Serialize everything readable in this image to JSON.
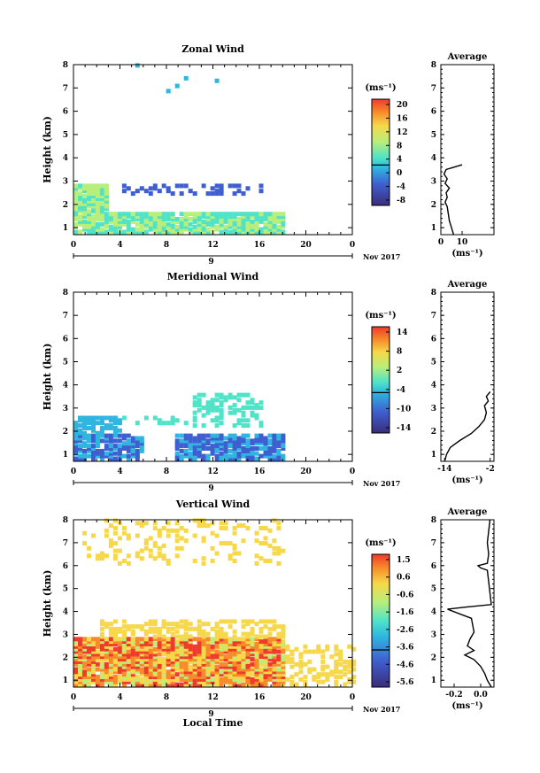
{
  "chart_data": [
    {
      "type": "heatmap",
      "title": "Zonal Wind",
      "ylabel": "Height (km)",
      "y_ticks": [
        "1",
        "2",
        "3",
        "4",
        "5",
        "6",
        "7",
        "8"
      ],
      "x_ticks": [
        "0",
        "4",
        "8",
        "12",
        "16",
        "20",
        "0"
      ],
      "date_day": "9",
      "date_month": "Nov 2017",
      "units": "(ms⁻¹)",
      "colorbar_ticks": [
        "20",
        "16",
        "12",
        "8",
        "4",
        "0",
        "-4",
        "-8"
      ],
      "colorbar_range": [
        -10,
        22
      ],
      "profile": {
        "title": "Average",
        "x_ticks": [
          "0",
          "10"
        ],
        "xlabel": "(ms⁻¹)",
        "xlim": [
          0,
          25
        ],
        "heights": [
          0.7,
          1.0,
          1.3,
          1.6,
          1.9,
          2.1,
          2.3,
          2.5,
          2.7,
          2.9,
          3.1,
          3.3,
          3.5,
          3.7
        ],
        "values": [
          6,
          5,
          4,
          3.5,
          3,
          2,
          3,
          2.5,
          4,
          2,
          3,
          1.5,
          2.5,
          10
        ]
      }
    },
    {
      "type": "heatmap",
      "title": "Meridional Wind",
      "ylabel": "Height (km)",
      "y_ticks": [
        "1",
        "2",
        "3",
        "4",
        "5",
        "6",
        "7",
        "8"
      ],
      "x_ticks": [
        "0",
        "4",
        "8",
        "12",
        "16",
        "20",
        "0"
      ],
      "date_day": "9",
      "date_month": "Nov 2017",
      "units": "(ms⁻¹)",
      "colorbar_ticks": [
        "14",
        "8",
        "2",
        "-4",
        "-10",
        "-14"
      ],
      "colorbar_range": [
        -16,
        16
      ],
      "profile": {
        "title": "Average",
        "x_ticks": [
          "-14",
          "-2"
        ],
        "xlabel": "(ms⁻¹)",
        "xlim": [
          -15,
          -1
        ],
        "heights": [
          0.7,
          1.0,
          1.3,
          1.6,
          1.9,
          2.2,
          2.5,
          2.8,
          3.1,
          3.3,
          3.5,
          3.7
        ],
        "values": [
          -14,
          -13.5,
          -12.5,
          -10,
          -7,
          -5,
          -3.5,
          -3,
          -3.5,
          -2.5,
          -3,
          -2
        ]
      }
    },
    {
      "type": "heatmap",
      "title": "Vertical Wind",
      "ylabel": "Height (km)",
      "xlabel": "Local Time",
      "y_ticks": [
        "1",
        "2",
        "3",
        "4",
        "5",
        "6",
        "7",
        "8"
      ],
      "x_ticks": [
        "0",
        "4",
        "8",
        "12",
        "16",
        "20",
        "0"
      ],
      "date_day": "9",
      "date_month": "Nov 2017",
      "units": "(ms⁻¹)",
      "colorbar_ticks": [
        "1.5",
        "0.6",
        "-0.6",
        "-1.6",
        "-2.6",
        "-3.6",
        "-4.6",
        "-5.6"
      ],
      "colorbar_range": [
        -6,
        2
      ],
      "profile": {
        "title": "Average",
        "x_ticks": [
          "-0.2",
          "0.0"
        ],
        "xlabel": "(ms⁻¹)",
        "xlim": [
          -0.3,
          0.1
        ],
        "heights": [
          0.7,
          1.0,
          1.3,
          1.6,
          1.9,
          2.1,
          2.3,
          2.5,
          2.8,
          3.1,
          3.4,
          3.7,
          4.1,
          4.2,
          4.3,
          5.8,
          5.9,
          6.0,
          6.1,
          6.5,
          7.0,
          7.5,
          8.0
        ],
        "values": [
          0.08,
          0.05,
          0.03,
          0.0,
          -0.05,
          -0.12,
          -0.05,
          -0.1,
          -0.08,
          -0.05,
          -0.06,
          -0.07,
          -0.25,
          -0.1,
          0.08,
          0.05,
          0.0,
          -0.02,
          0.05,
          0.06,
          0.05,
          0.06,
          0.07
        ]
      }
    }
  ]
}
